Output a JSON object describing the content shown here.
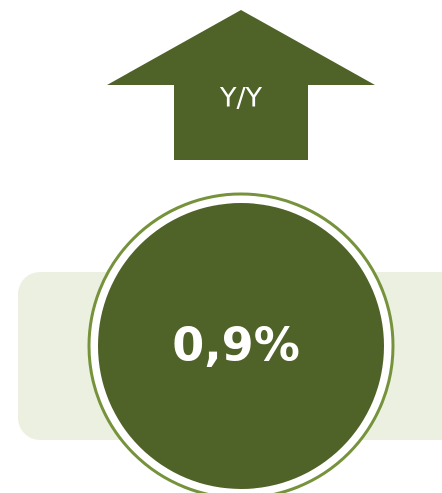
{
  "arrow_label": "Y/Y",
  "value": "0,9%"
}
